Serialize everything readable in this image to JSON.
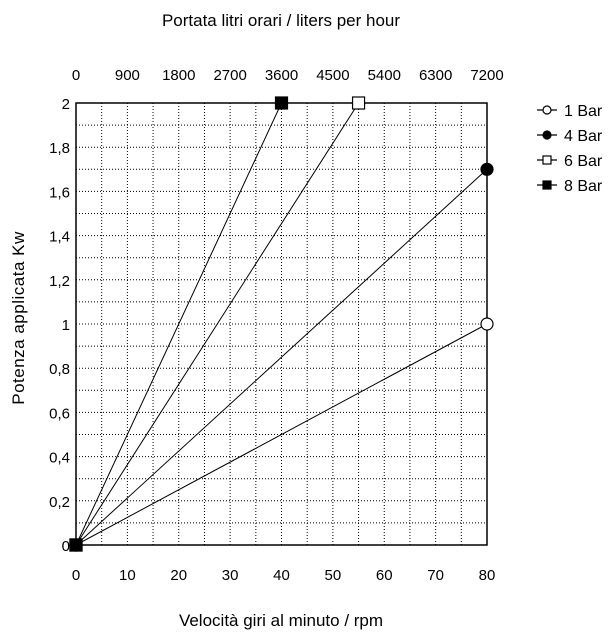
{
  "chart_data": {
    "type": "line",
    "title": "Portata litri orari / liters per hour",
    "xlabel": "Velocità giri al minuto / rpm",
    "ylabel": "Potenza applicata Kw",
    "xlim": [
      0,
      80
    ],
    "ylim": [
      0,
      2
    ],
    "x_ticks": [
      "0",
      "10",
      "20",
      "30",
      "40",
      "50",
      "60",
      "70",
      "80"
    ],
    "y_ticks": [
      "0",
      "0,2",
      "0,4",
      "0,6",
      "0,8",
      "1",
      "1,2",
      "1,4",
      "1,6",
      "1,8",
      "2"
    ],
    "x2_ticks": [
      "0",
      "900",
      "1800",
      "2700",
      "3600",
      "4500",
      "5400",
      "6300",
      "7200"
    ],
    "grid": true,
    "legend_position": "right",
    "series": [
      {
        "name": "1 Bar",
        "marker": "open-circle",
        "x": [
          0,
          80
        ],
        "y": [
          0,
          1.0
        ]
      },
      {
        "name": "4 Bar",
        "marker": "filled-circle",
        "x": [
          0,
          80
        ],
        "y": [
          0,
          1.7
        ]
      },
      {
        "name": "6 Bar",
        "marker": "open-square",
        "x": [
          0,
          55
        ],
        "y": [
          0,
          2.0
        ]
      },
      {
        "name": "8 Bar",
        "marker": "filled-square",
        "x": [
          0,
          40
        ],
        "y": [
          0,
          2.0
        ]
      }
    ]
  }
}
